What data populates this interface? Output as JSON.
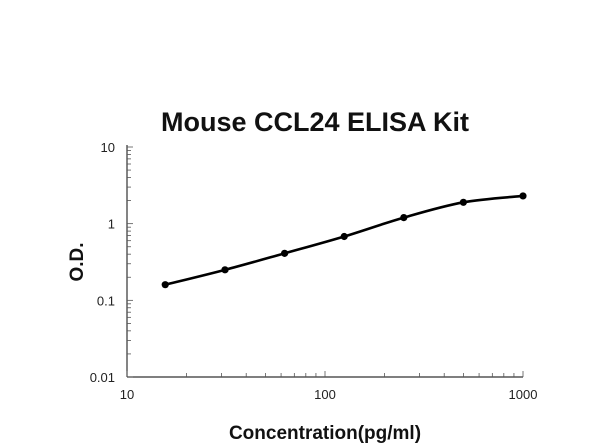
{
  "chart_data": {
    "type": "line",
    "title": "Mouse CCL24 ELISA Kit",
    "xlabel": "Concentration(pg/ml)",
    "ylabel": "O.D.",
    "xscale": "log",
    "yscale": "log",
    "xlim": [
      10,
      1000
    ],
    "ylim": [
      0.01,
      10
    ],
    "xticks": [
      "10",
      "100",
      "1000"
    ],
    "yticks": [
      "0.01",
      "0.1",
      "1",
      "10"
    ],
    "grid": false,
    "series": [
      {
        "x": [
          15.6,
          31.25,
          62.5,
          125,
          250,
          500,
          1000
        ],
        "y": [
          0.16,
          0.25,
          0.41,
          0.68,
          1.2,
          1.9,
          2.3
        ],
        "color": "#000000",
        "marker": "circle",
        "smooth": true
      }
    ]
  }
}
